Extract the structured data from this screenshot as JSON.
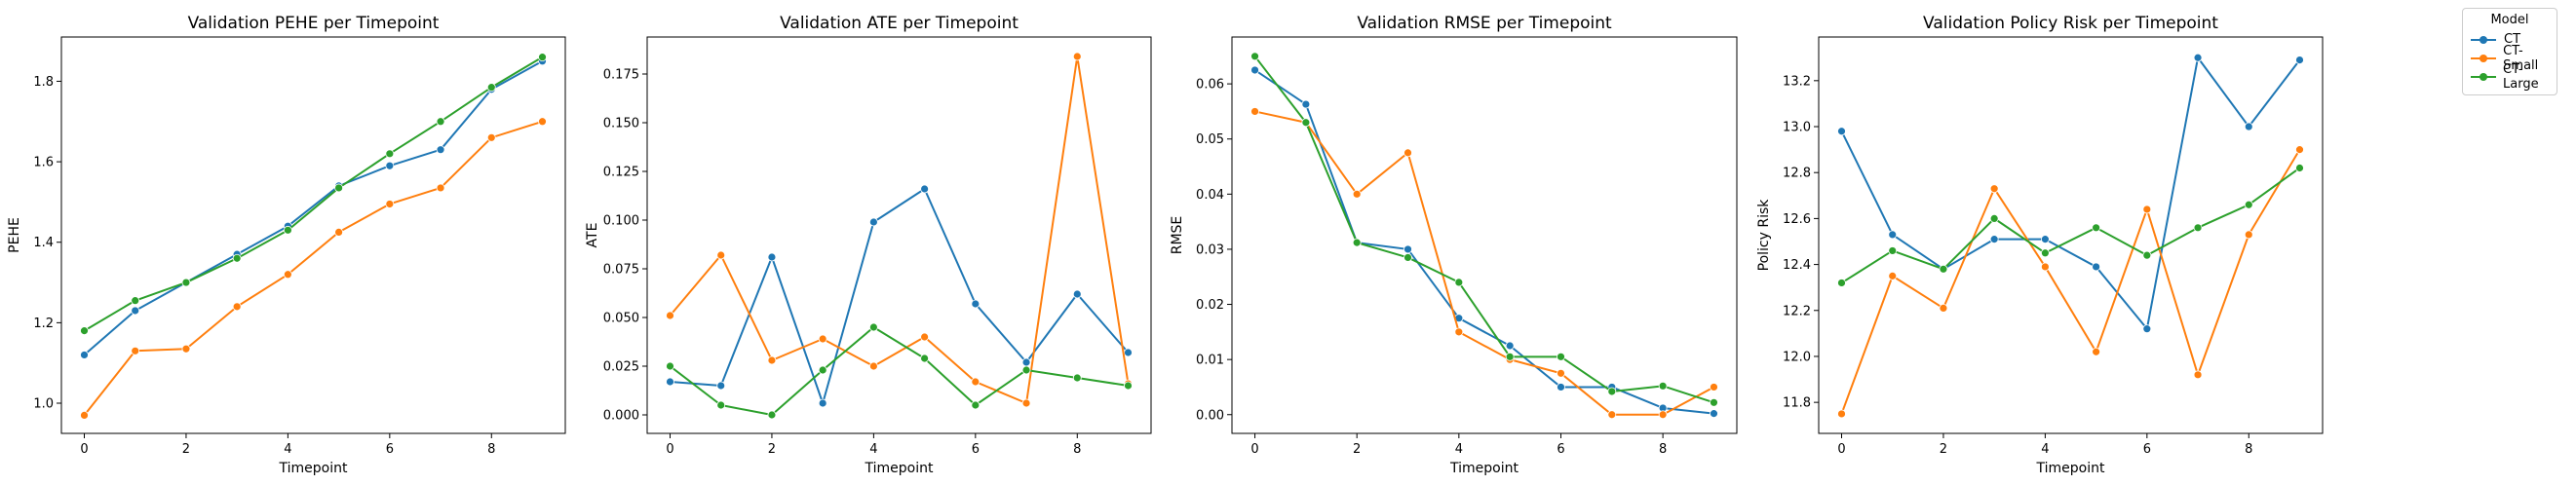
{
  "legend": {
    "title": "Model",
    "items": [
      {
        "label": "CT",
        "color": "#1f77b4"
      },
      {
        "label": "CT-Small",
        "color": "#ff7f0e"
      },
      {
        "label": "CT-Large",
        "color": "#2ca02c"
      }
    ]
  },
  "chart_data": [
    {
      "type": "line",
      "title": "Validation PEHE per Timepoint",
      "xlabel": "Timepoint",
      "ylabel": "PEHE",
      "x": [
        0,
        1,
        2,
        3,
        4,
        5,
        6,
        7,
        8,
        9
      ],
      "xlim": [
        -0.45,
        9.45
      ],
      "ylim": [
        0.925,
        1.91
      ],
      "xticks": [
        0,
        2,
        4,
        6,
        8
      ],
      "yticks": [
        1.0,
        1.2,
        1.4,
        1.6,
        1.8
      ],
      "ytick_decimals": 1,
      "series": [
        {
          "name": "CT",
          "color": "#1f77b4",
          "values": [
            1.12,
            1.23,
            1.3,
            1.37,
            1.44,
            1.54,
            1.59,
            1.63,
            1.78,
            1.85
          ]
        },
        {
          "name": "CT-Small",
          "color": "#ff7f0e",
          "values": [
            0.97,
            1.13,
            1.135,
            1.24,
            1.32,
            1.425,
            1.495,
            1.535,
            1.66,
            1.7
          ]
        },
        {
          "name": "CT-Large",
          "color": "#2ca02c",
          "values": [
            1.18,
            1.255,
            1.3,
            1.36,
            1.43,
            1.535,
            1.62,
            1.7,
            1.785,
            1.86
          ]
        }
      ]
    },
    {
      "type": "line",
      "title": "Validation ATE per Timepoint",
      "xlabel": "Timepoint",
      "ylabel": "ATE",
      "x": [
        0,
        1,
        2,
        3,
        4,
        5,
        6,
        7,
        8,
        9
      ],
      "xlim": [
        -0.45,
        9.45
      ],
      "ylim": [
        -0.0095,
        0.194
      ],
      "xticks": [
        0,
        2,
        4,
        6,
        8
      ],
      "yticks": [
        0.0,
        0.025,
        0.05,
        0.075,
        0.1,
        0.125,
        0.15,
        0.175
      ],
      "ytick_decimals": 3,
      "series": [
        {
          "name": "CT",
          "color": "#1f77b4",
          "values": [
            0.017,
            0.015,
            0.081,
            0.006,
            0.099,
            0.116,
            0.057,
            0.027,
            0.062,
            0.032
          ]
        },
        {
          "name": "CT-Small",
          "color": "#ff7f0e",
          "values": [
            0.051,
            0.082,
            0.028,
            0.039,
            0.025,
            0.04,
            0.017,
            0.006,
            0.184,
            0.016
          ]
        },
        {
          "name": "CT-Large",
          "color": "#2ca02c",
          "values": [
            0.025,
            0.005,
            0.0,
            0.023,
            0.045,
            0.029,
            0.005,
            0.023,
            0.019,
            0.015
          ]
        }
      ]
    },
    {
      "type": "line",
      "title": "Validation RMSE per Timepoint",
      "xlabel": "Timepoint",
      "ylabel": "RMSE",
      "x": [
        0,
        1,
        2,
        3,
        4,
        5,
        6,
        7,
        8,
        9
      ],
      "xlim": [
        -0.45,
        9.45
      ],
      "ylim": [
        -0.0034,
        0.0685
      ],
      "xticks": [
        0,
        2,
        4,
        6,
        8
      ],
      "yticks": [
        0.0,
        0.01,
        0.02,
        0.03,
        0.04,
        0.05,
        0.06
      ],
      "ytick_decimals": 2,
      "series": [
        {
          "name": "CT",
          "color": "#1f77b4",
          "values": [
            0.0625,
            0.0563,
            0.0312,
            0.03,
            0.0175,
            0.0125,
            0.005,
            0.005,
            0.0012,
            0.0002
          ]
        },
        {
          "name": "CT-Small",
          "color": "#ff7f0e",
          "values": [
            0.055,
            0.053,
            0.04,
            0.0475,
            0.015,
            0.01,
            0.0075,
            0.0,
            0.0,
            0.005
          ]
        },
        {
          "name": "CT-Large",
          "color": "#2ca02c",
          "values": [
            0.065,
            0.053,
            0.0312,
            0.0285,
            0.024,
            0.0105,
            0.0105,
            0.0042,
            0.0052,
            0.0022
          ]
        }
      ]
    },
    {
      "type": "line",
      "title": "Validation Policy Risk per Timepoint",
      "xlabel": "Timepoint",
      "ylabel": "Policy Risk",
      "x": [
        0,
        1,
        2,
        3,
        4,
        5,
        6,
        7,
        8,
        9
      ],
      "xlim": [
        -0.45,
        9.45
      ],
      "ylim": [
        11.665,
        13.39
      ],
      "xticks": [
        0,
        2,
        4,
        6,
        8
      ],
      "yticks": [
        11.8,
        12.0,
        12.2,
        12.4,
        12.6,
        12.8,
        13.0,
        13.2
      ],
      "ytick_decimals": 1,
      "series": [
        {
          "name": "CT",
          "color": "#1f77b4",
          "values": [
            12.98,
            12.53,
            12.38,
            12.51,
            12.51,
            12.39,
            12.12,
            13.3,
            13.0,
            13.29
          ]
        },
        {
          "name": "CT-Small",
          "color": "#ff7f0e",
          "values": [
            11.75,
            12.35,
            12.21,
            12.73,
            12.39,
            12.02,
            12.64,
            11.92,
            12.53,
            12.9
          ]
        },
        {
          "name": "CT-Large",
          "color": "#2ca02c",
          "values": [
            12.32,
            12.46,
            12.38,
            12.6,
            12.45,
            12.56,
            12.44,
            12.56,
            12.66,
            12.82
          ]
        }
      ]
    }
  ]
}
